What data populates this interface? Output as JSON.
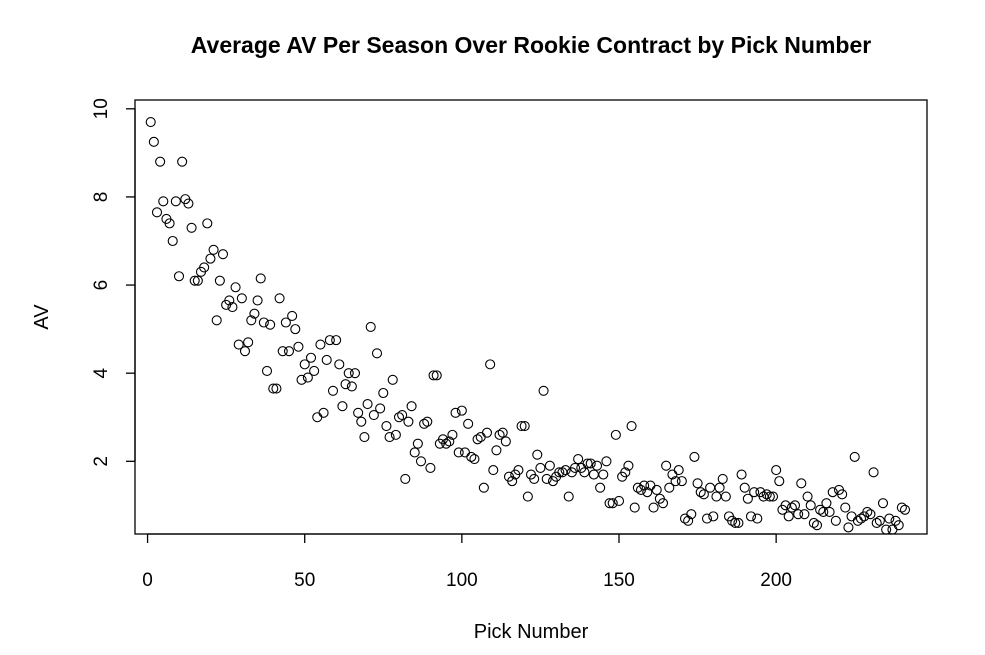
{
  "chart_data": {
    "type": "scatter",
    "title": "Average AV Per Season Over Rookie Contract by Pick Number",
    "xlabel": "Pick Number",
    "ylabel": "AV",
    "xlim": [
      -4,
      248
    ],
    "ylim": [
      0.35,
      10.2
    ],
    "xticks": [
      0,
      50,
      100,
      150,
      200
    ],
    "yticks": [
      2,
      4,
      6,
      8,
      10
    ],
    "grid": false,
    "legend": "none",
    "marker": "open-circle",
    "colors": {
      "marker": "#000000",
      "frame": "#000000",
      "background": "#ffffff"
    },
    "points": [
      [
        1,
        9.7
      ],
      [
        2,
        9.25
      ],
      [
        3,
        7.65
      ],
      [
        4,
        8.8
      ],
      [
        5,
        7.9
      ],
      [
        6,
        7.5
      ],
      [
        7,
        7.4
      ],
      [
        8,
        7.0
      ],
      [
        9,
        7.9
      ],
      [
        10,
        6.2
      ],
      [
        11,
        8.8
      ],
      [
        12,
        7.95
      ],
      [
        13,
        7.85
      ],
      [
        14,
        7.3
      ],
      [
        15,
        6.1
      ],
      [
        16,
        6.1
      ],
      [
        17,
        6.3
      ],
      [
        18,
        6.4
      ],
      [
        19,
        7.4
      ],
      [
        20,
        6.6
      ],
      [
        21,
        6.8
      ],
      [
        22,
        5.2
      ],
      [
        23,
        6.1
      ],
      [
        24,
        6.7
      ],
      [
        25,
        5.55
      ],
      [
        26,
        5.65
      ],
      [
        27,
        5.5
      ],
      [
        28,
        5.95
      ],
      [
        29,
        4.65
      ],
      [
        30,
        5.7
      ],
      [
        31,
        4.5
      ],
      [
        32,
        4.7
      ],
      [
        33,
        5.2
      ],
      [
        34,
        5.35
      ],
      [
        35,
        5.65
      ],
      [
        36,
        6.15
      ],
      [
        37,
        5.15
      ],
      [
        38,
        4.05
      ],
      [
        39,
        5.1
      ],
      [
        40,
        3.65
      ],
      [
        41,
        3.65
      ],
      [
        42,
        5.7
      ],
      [
        43,
        4.5
      ],
      [
        44,
        5.15
      ],
      [
        45,
        4.5
      ],
      [
        46,
        5.3
      ],
      [
        47,
        5.0
      ],
      [
        48,
        4.6
      ],
      [
        49,
        3.85
      ],
      [
        50,
        4.2
      ],
      [
        51,
        3.9
      ],
      [
        52,
        4.35
      ],
      [
        53,
        4.05
      ],
      [
        54,
        3.0
      ],
      [
        55,
        4.65
      ],
      [
        56,
        3.1
      ],
      [
        57,
        4.3
      ],
      [
        58,
        4.75
      ],
      [
        59,
        3.6
      ],
      [
        60,
        4.75
      ],
      [
        61,
        4.2
      ],
      [
        62,
        3.25
      ],
      [
        63,
        3.75
      ],
      [
        64,
        4.0
      ],
      [
        65,
        3.7
      ],
      [
        66,
        4.0
      ],
      [
        67,
        3.1
      ],
      [
        68,
        2.9
      ],
      [
        69,
        2.55
      ],
      [
        70,
        3.3
      ],
      [
        71,
        5.05
      ],
      [
        72,
        3.05
      ],
      [
        73,
        4.45
      ],
      [
        74,
        3.2
      ],
      [
        75,
        3.55
      ],
      [
        76,
        2.8
      ],
      [
        77,
        2.55
      ],
      [
        78,
        3.85
      ],
      [
        79,
        2.6
      ],
      [
        80,
        3.0
      ],
      [
        81,
        3.05
      ],
      [
        82,
        1.6
      ],
      [
        83,
        2.9
      ],
      [
        84,
        3.25
      ],
      [
        85,
        2.2
      ],
      [
        86,
        2.4
      ],
      [
        87,
        2.0
      ],
      [
        88,
        2.85
      ],
      [
        89,
        2.9
      ],
      [
        90,
        1.85
      ],
      [
        91,
        3.95
      ],
      [
        92,
        3.95
      ],
      [
        93,
        2.4
      ],
      [
        94,
        2.5
      ],
      [
        95,
        2.4
      ],
      [
        96,
        2.45
      ],
      [
        97,
        2.6
      ],
      [
        98,
        3.1
      ],
      [
        99,
        2.2
      ],
      [
        100,
        3.15
      ],
      [
        101,
        2.2
      ],
      [
        102,
        2.85
      ],
      [
        103,
        2.1
      ],
      [
        104,
        2.05
      ],
      [
        105,
        2.5
      ],
      [
        106,
        2.55
      ],
      [
        107,
        1.4
      ],
      [
        108,
        2.65
      ],
      [
        109,
        4.2
      ],
      [
        110,
        1.8
      ],
      [
        111,
        2.25
      ],
      [
        112,
        2.6
      ],
      [
        113,
        2.65
      ],
      [
        114,
        2.45
      ],
      [
        115,
        1.65
      ],
      [
        116,
        1.55
      ],
      [
        117,
        1.7
      ],
      [
        118,
        1.8
      ],
      [
        119,
        2.8
      ],
      [
        120,
        2.8
      ],
      [
        121,
        1.2
      ],
      [
        122,
        1.7
      ],
      [
        123,
        1.6
      ],
      [
        124,
        2.15
      ],
      [
        125,
        1.85
      ],
      [
        126,
        3.6
      ],
      [
        127,
        1.6
      ],
      [
        128,
        1.9
      ],
      [
        129,
        1.55
      ],
      [
        130,
        1.65
      ],
      [
        131,
        1.75
      ],
      [
        132,
        1.75
      ],
      [
        133,
        1.8
      ],
      [
        134,
        1.2
      ],
      [
        135,
        1.75
      ],
      [
        136,
        1.85
      ],
      [
        137,
        2.05
      ],
      [
        138,
        1.85
      ],
      [
        139,
        1.75
      ],
      [
        140,
        1.95
      ],
      [
        141,
        1.95
      ],
      [
        142,
        1.7
      ],
      [
        143,
        1.9
      ],
      [
        144,
        1.4
      ],
      [
        145,
        1.7
      ],
      [
        146,
        2.0
      ],
      [
        147,
        1.05
      ],
      [
        148,
        1.05
      ],
      [
        149,
        2.6
      ],
      [
        150,
        1.1
      ],
      [
        151,
        1.65
      ],
      [
        152,
        1.75
      ],
      [
        153,
        1.9
      ],
      [
        154,
        2.8
      ],
      [
        155,
        0.95
      ],
      [
        156,
        1.4
      ],
      [
        157,
        1.35
      ],
      [
        158,
        1.45
      ],
      [
        159,
        1.3
      ],
      [
        160,
        1.45
      ],
      [
        161,
        0.95
      ],
      [
        162,
        1.35
      ],
      [
        163,
        1.15
      ],
      [
        164,
        1.05
      ],
      [
        165,
        1.9
      ],
      [
        166,
        1.4
      ],
      [
        167,
        1.7
      ],
      [
        168,
        1.55
      ],
      [
        169,
        1.8
      ],
      [
        170,
        1.55
      ],
      [
        171,
        0.7
      ],
      [
        172,
        0.65
      ],
      [
        173,
        0.8
      ],
      [
        174,
        2.1
      ],
      [
        175,
        1.5
      ],
      [
        176,
        1.3
      ],
      [
        177,
        1.25
      ],
      [
        178,
        0.7
      ],
      [
        179,
        1.4
      ],
      [
        180,
        0.75
      ],
      [
        181,
        1.2
      ],
      [
        182,
        1.4
      ],
      [
        183,
        1.6
      ],
      [
        184,
        1.2
      ],
      [
        185,
        0.75
      ],
      [
        186,
        0.65
      ],
      [
        187,
        0.6
      ],
      [
        188,
        0.6
      ],
      [
        189,
        1.7
      ],
      [
        190,
        1.4
      ],
      [
        191,
        1.15
      ],
      [
        192,
        0.75
      ],
      [
        193,
        1.3
      ],
      [
        194,
        0.7
      ],
      [
        195,
        1.3
      ],
      [
        196,
        1.2
      ],
      [
        197,
        1.25
      ],
      [
        198,
        1.2
      ],
      [
        199,
        1.2
      ],
      [
        200,
        1.8
      ],
      [
        201,
        1.55
      ],
      [
        202,
        0.9
      ],
      [
        203,
        1.0
      ],
      [
        204,
        0.75
      ],
      [
        205,
        0.95
      ],
      [
        206,
        1.0
      ],
      [
        207,
        0.8
      ],
      [
        208,
        1.5
      ],
      [
        209,
        0.8
      ],
      [
        210,
        1.2
      ],
      [
        211,
        1.0
      ],
      [
        212,
        0.6
      ],
      [
        213,
        0.55
      ],
      [
        214,
        0.9
      ],
      [
        215,
        0.85
      ],
      [
        216,
        1.05
      ],
      [
        217,
        0.85
      ],
      [
        218,
        1.3
      ],
      [
        219,
        0.65
      ],
      [
        220,
        1.35
      ],
      [
        221,
        1.25
      ],
      [
        222,
        0.95
      ],
      [
        223,
        0.5
      ],
      [
        224,
        0.75
      ],
      [
        225,
        2.1
      ],
      [
        226,
        0.65
      ],
      [
        227,
        0.7
      ],
      [
        228,
        0.75
      ],
      [
        229,
        0.85
      ],
      [
        230,
        0.8
      ],
      [
        231,
        1.75
      ],
      [
        232,
        0.6
      ],
      [
        233,
        0.65
      ],
      [
        234,
        1.05
      ],
      [
        235,
        0.45
      ],
      [
        236,
        0.7
      ],
      [
        237,
        0.45
      ],
      [
        238,
        0.65
      ],
      [
        239,
        0.55
      ],
      [
        240,
        0.95
      ],
      [
        241,
        0.9
      ]
    ]
  }
}
